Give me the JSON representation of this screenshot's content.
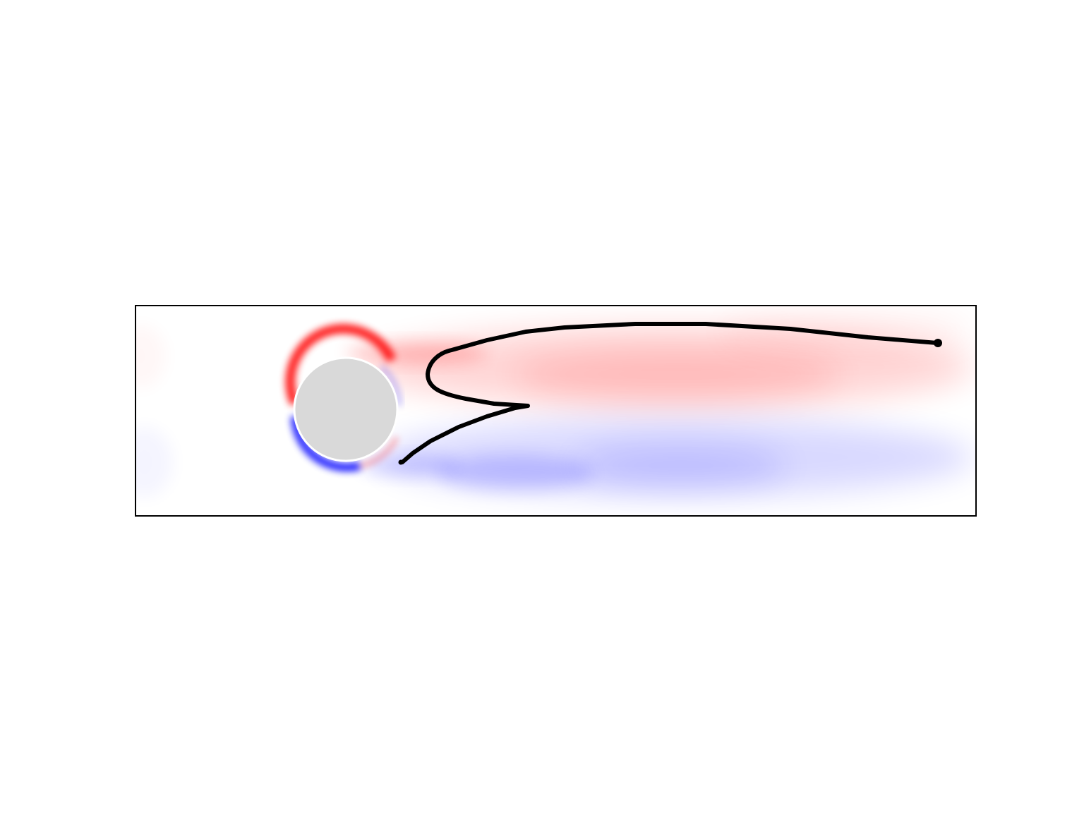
{
  "figure": {
    "kind": "vorticity-field-with-trajectory",
    "colors": {
      "positive": "#ff0000",
      "negative": "#0000ff",
      "cylinder": "#d9d9d9",
      "cylinder_edge": "#ffffff",
      "trajectory": "#000000",
      "frame": "#000000",
      "background": "#ffffff"
    }
  }
}
